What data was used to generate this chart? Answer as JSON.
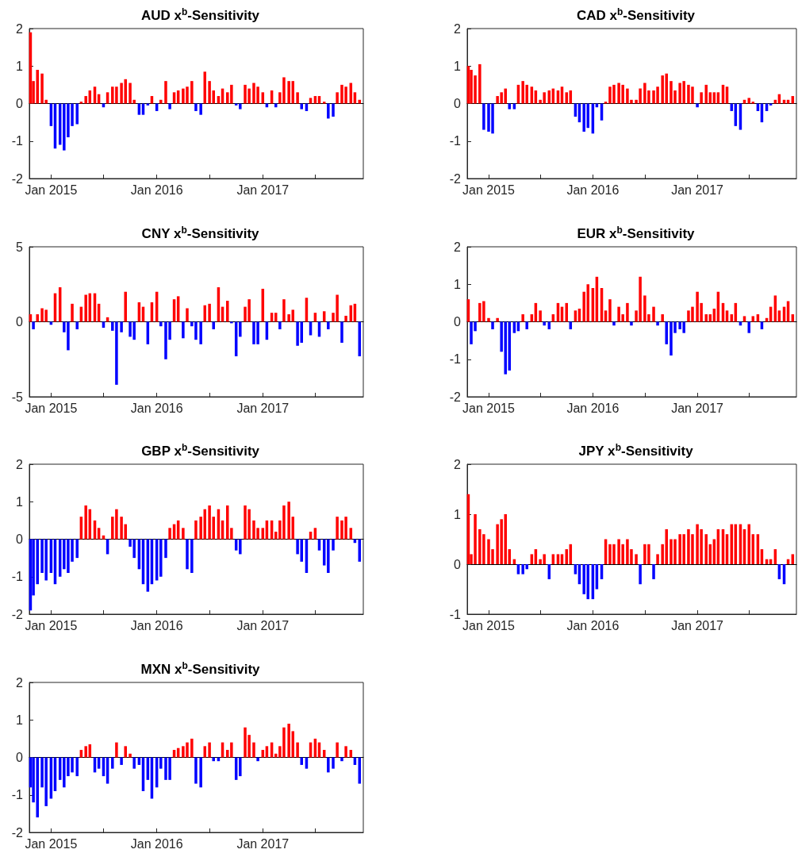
{
  "chart_data": [
    {
      "type": "bar",
      "title": "AUD x$^{b}$-Sensitivity",
      "x": [
        "2014-10-22",
        "2014-11-01",
        "2014-11-15",
        "2014-12-01",
        "2014-12-15",
        "2015-01-01",
        "2015-01-15",
        "2015-02-01",
        "2015-02-15",
        "2015-03-01",
        "2015-03-15",
        "2015-04-01",
        "2015-04-15",
        "2015-05-01",
        "2015-05-15",
        "2015-06-01",
        "2015-06-15",
        "2015-07-01",
        "2015-07-15",
        "2015-08-01",
        "2015-08-15",
        "2015-09-01",
        "2015-09-15",
        "2015-10-01",
        "2015-10-15",
        "2015-11-01",
        "2015-11-15",
        "2015-12-01",
        "2015-12-15",
        "2016-01-01",
        "2016-01-15",
        "2016-02-01",
        "2016-02-15",
        "2016-03-01",
        "2016-03-15",
        "2016-04-01",
        "2016-04-15",
        "2016-05-01",
        "2016-05-15",
        "2016-06-01",
        "2016-06-15",
        "2016-07-01",
        "2016-07-15",
        "2016-08-01",
        "2016-08-15",
        "2016-09-01",
        "2016-09-15",
        "2016-10-01",
        "2016-10-15",
        "2016-11-01",
        "2016-11-15",
        "2016-12-01",
        "2016-12-15",
        "2017-01-01",
        "2017-01-15",
        "2017-02-01",
        "2017-02-15",
        "2017-03-01",
        "2017-03-15",
        "2017-04-01",
        "2017-04-15",
        "2017-05-01",
        "2017-05-15",
        "2017-06-01",
        "2017-06-15",
        "2017-07-01",
        "2017-07-15",
        "2017-08-01",
        "2017-08-15",
        "2017-09-01",
        "2017-09-15",
        "2017-10-01",
        "2017-10-15",
        "2017-11-01",
        "2017-11-15",
        "2017-12-01"
      ],
      "values": [
        1.9,
        0.6,
        0.9,
        0.8,
        0.1,
        -0.6,
        -1.2,
        -1.1,
        -1.25,
        -0.9,
        -0.6,
        -0.55,
        0.05,
        0.2,
        0.35,
        0.45,
        0.25,
        -0.1,
        0.3,
        0.45,
        0.45,
        0.55,
        0.65,
        0.55,
        0.1,
        -0.3,
        -0.3,
        -0.05,
        0.2,
        -0.2,
        0.1,
        0.6,
        -0.15,
        0.3,
        0.35,
        0.4,
        0.45,
        0.6,
        -0.2,
        -0.3,
        0.85,
        0.6,
        0.35,
        0.2,
        0.4,
        0.3,
        0.5,
        -0.05,
        -0.15,
        0.5,
        0.4,
        0.55,
        0.45,
        0.3,
        -0.1,
        0.35,
        -0.1,
        0.3,
        0.7,
        0.6,
        0.6,
        0.3,
        -0.15,
        -0.2,
        0.15,
        0.2,
        0.2,
        0.05,
        -0.4,
        -0.35,
        0.3,
        0.5,
        0.45,
        0.55,
        0.3,
        0.1
      ],
      "colors": [
        "#ff0000",
        "#ff0000",
        "#ff0000",
        "#ff0000",
        "#ff0000",
        "#0000ff",
        "#0000ff",
        "#0000ff",
        "#0000ff",
        "#0000ff",
        "#0000ff",
        "#0000ff",
        "#ff0000",
        "#ff0000",
        "#ff0000",
        "#ff0000",
        "#ff0000",
        "#0000ff",
        "#ff0000",
        "#ff0000",
        "#ff0000",
        "#ff0000",
        "#ff0000",
        "#ff0000",
        "#ff0000",
        "#0000ff",
        "#0000ff",
        "#0000ff",
        "#ff0000",
        "#0000ff",
        "#ff0000",
        "#ff0000",
        "#0000ff",
        "#ff0000",
        "#ff0000",
        "#ff0000",
        "#ff0000",
        "#ff0000",
        "#0000ff",
        "#0000ff",
        "#ff0000",
        "#ff0000",
        "#ff0000",
        "#ff0000",
        "#ff0000",
        "#ff0000",
        "#ff0000",
        "#0000ff",
        "#0000ff",
        "#ff0000",
        "#ff0000",
        "#ff0000",
        "#ff0000",
        "#ff0000",
        "#0000ff",
        "#ff0000",
        "#0000ff",
        "#ff0000",
        "#ff0000",
        "#ff0000",
        "#ff0000",
        "#ff0000",
        "#0000ff",
        "#0000ff",
        "#ff0000",
        "#ff0000",
        "#ff0000",
        "#ff0000",
        "#0000ff",
        "#0000ff",
        "#ff0000",
        "#ff0000",
        "#ff0000",
        "#ff0000",
        "#ff0000",
        "#ff0000"
      ],
      "xlim": [
        "2014-10-18",
        "2017-12-14"
      ],
      "xticks": [
        {
          "value": "2015-01-01",
          "label": "Jan 2015"
        },
        {
          "value": "2015-07-01",
          "label": null
        },
        {
          "value": "2016-01-01",
          "label": "Jan 2016"
        },
        {
          "value": "2016-07-01",
          "label": null
        },
        {
          "value": "2017-01-01",
          "label": "Jan 2017"
        },
        {
          "value": "2017-07-01",
          "label": null
        }
      ],
      "ylim": [
        -2,
        2
      ],
      "yticks": [
        -2,
        -1,
        0,
        1,
        2
      ]
    },
    {
      "type": "bar",
      "title": "CAD x$^{b}$-Sensitivity",
      "x": [
        "2014-10-22",
        "2014-11-01",
        "2014-11-15",
        "2014-12-01",
        "2014-12-15",
        "2015-01-01",
        "2015-01-15",
        "2015-02-01",
        "2015-02-15",
        "2015-03-01",
        "2015-03-15",
        "2015-04-01",
        "2015-04-15",
        "2015-05-01",
        "2015-05-15",
        "2015-06-01",
        "2015-06-15",
        "2015-07-01",
        "2015-07-15",
        "2015-08-01",
        "2015-08-15",
        "2015-09-01",
        "2015-09-15",
        "2015-10-01",
        "2015-10-15",
        "2015-11-01",
        "2015-11-15",
        "2015-12-01",
        "2015-12-15",
        "2016-01-01",
        "2016-01-15",
        "2016-02-01",
        "2016-02-15",
        "2016-03-01",
        "2016-03-15",
        "2016-04-01",
        "2016-04-15",
        "2016-05-01",
        "2016-05-15",
        "2016-06-01",
        "2016-06-15",
        "2016-07-01",
        "2016-07-15",
        "2016-08-01",
        "2016-08-15",
        "2016-09-01",
        "2016-09-15",
        "2016-10-01",
        "2016-10-15",
        "2016-11-01",
        "2016-11-15",
        "2016-12-01",
        "2016-12-15",
        "2017-01-01",
        "2017-01-15",
        "2017-02-01",
        "2017-02-15",
        "2017-03-01",
        "2017-03-15",
        "2017-04-01",
        "2017-04-15",
        "2017-05-01",
        "2017-05-15",
        "2017-06-01",
        "2017-06-15",
        "2017-07-01",
        "2017-07-15",
        "2017-08-01",
        "2017-08-15",
        "2017-09-01",
        "2017-09-15",
        "2017-10-01",
        "2017-10-15",
        "2017-11-01",
        "2017-11-15",
        "2017-12-01"
      ],
      "values": [
        1.0,
        0.9,
        0.75,
        1.05,
        -0.7,
        -0.75,
        -0.8,
        0.2,
        0.3,
        0.4,
        -0.15,
        -0.15,
        0.5,
        0.6,
        0.5,
        0.45,
        0.35,
        0.1,
        0.3,
        0.35,
        0.4,
        0.35,
        0.45,
        0.3,
        0.35,
        -0.35,
        -0.5,
        -0.75,
        -0.65,
        -0.8,
        -0.1,
        -0.45,
        0.05,
        0.45,
        0.5,
        0.55,
        0.5,
        0.4,
        0.1,
        0.1,
        0.4,
        0.55,
        0.35,
        0.35,
        0.45,
        0.75,
        0.8,
        0.6,
        0.35,
        0.55,
        0.6,
        0.5,
        0.45,
        -0.1,
        0.3,
        0.5,
        0.3,
        0.3,
        0.3,
        0.5,
        0.45,
        -0.2,
        -0.6,
        -0.7,
        0.1,
        0.15,
        0.05,
        -0.2,
        -0.5,
        -0.2,
        -0.05,
        0.1,
        0.25,
        0.1,
        0.1,
        0.2
      ],
      "colors": [
        "#ff0000",
        "#ff0000",
        "#ff0000",
        "#ff0000",
        "#0000ff",
        "#0000ff",
        "#0000ff",
        "#ff0000",
        "#ff0000",
        "#ff0000",
        "#0000ff",
        "#0000ff",
        "#ff0000",
        "#ff0000",
        "#ff0000",
        "#ff0000",
        "#ff0000",
        "#ff0000",
        "#ff0000",
        "#ff0000",
        "#ff0000",
        "#ff0000",
        "#ff0000",
        "#ff0000",
        "#ff0000",
        "#0000ff",
        "#0000ff",
        "#0000ff",
        "#0000ff",
        "#0000ff",
        "#0000ff",
        "#0000ff",
        "#ff0000",
        "#ff0000",
        "#ff0000",
        "#ff0000",
        "#ff0000",
        "#ff0000",
        "#ff0000",
        "#ff0000",
        "#ff0000",
        "#ff0000",
        "#ff0000",
        "#ff0000",
        "#ff0000",
        "#ff0000",
        "#ff0000",
        "#ff0000",
        "#ff0000",
        "#ff0000",
        "#ff0000",
        "#ff0000",
        "#ff0000",
        "#0000ff",
        "#ff0000",
        "#ff0000",
        "#ff0000",
        "#ff0000",
        "#ff0000",
        "#ff0000",
        "#ff0000",
        "#0000ff",
        "#0000ff",
        "#0000ff",
        "#ff0000",
        "#ff0000",
        "#ff0000",
        "#0000ff",
        "#0000ff",
        "#0000ff",
        "#0000ff",
        "#ff0000",
        "#ff0000",
        "#ff0000",
        "#ff0000",
        "#ff0000"
      ],
      "xlim": [
        "2014-10-18",
        "2017-12-14"
      ],
      "xticks": [
        {
          "value": "2015-01-01",
          "label": "Jan 2015"
        },
        {
          "value": "2015-07-01",
          "label": null
        },
        {
          "value": "2016-01-01",
          "label": "Jan 2016"
        },
        {
          "value": "2016-07-01",
          "label": null
        },
        {
          "value": "2017-01-01",
          "label": "Jan 2017"
        },
        {
          "value": "2017-07-01",
          "label": null
        }
      ],
      "ylim": [
        -2,
        2
      ],
      "yticks": [
        -2,
        -1,
        0,
        1,
        2
      ]
    },
    {
      "type": "bar",
      "title": "CNY x$^{b}$-Sensitivity",
      "x": [
        "2014-10-22",
        "2014-11-01",
        "2014-11-15",
        "2014-12-01",
        "2014-12-15",
        "2015-01-01",
        "2015-01-15",
        "2015-02-01",
        "2015-02-15",
        "2015-03-01",
        "2015-03-15",
        "2015-04-01",
        "2015-04-15",
        "2015-05-01",
        "2015-05-15",
        "2015-06-01",
        "2015-06-15",
        "2015-07-01",
        "2015-07-15",
        "2015-08-01",
        "2015-08-15",
        "2015-09-01",
        "2015-09-15",
        "2015-10-01",
        "2015-10-15",
        "2015-11-01",
        "2015-11-15",
        "2015-12-01",
        "2015-12-15",
        "2016-01-01",
        "2016-01-15",
        "2016-02-01",
        "2016-02-15",
        "2016-03-01",
        "2016-03-15",
        "2016-04-01",
        "2016-04-15",
        "2016-05-01",
        "2016-05-15",
        "2016-06-01",
        "2016-06-15",
        "2016-07-01",
        "2016-07-15",
        "2016-08-01",
        "2016-08-15",
        "2016-09-01",
        "2016-09-15",
        "2016-10-01",
        "2016-10-15",
        "2016-11-01",
        "2016-11-15",
        "2016-12-01",
        "2016-12-15",
        "2017-01-01",
        "2017-01-15",
        "2017-02-01",
        "2017-02-15",
        "2017-03-01",
        "2017-03-15",
        "2017-04-01",
        "2017-04-15",
        "2017-05-01",
        "2017-05-15",
        "2017-06-01",
        "2017-06-15",
        "2017-07-01",
        "2017-07-15",
        "2017-08-01",
        "2017-08-15",
        "2017-09-01",
        "2017-09-15",
        "2017-10-01",
        "2017-10-15",
        "2017-11-01",
        "2017-11-15",
        "2017-12-01"
      ],
      "values": [
        0.5,
        -0.5,
        0.5,
        0.9,
        0.8,
        -0.2,
        1.9,
        2.3,
        -0.7,
        -1.9,
        1.2,
        -0.5,
        1.0,
        1.8,
        1.9,
        1.9,
        1.2,
        -0.4,
        0.3,
        -0.6,
        -4.2,
        -0.7,
        2.0,
        -1.0,
        -1.2,
        1.3,
        1.0,
        -1.5,
        1.3,
        2.0,
        -0.3,
        -2.5,
        -1.2,
        1.5,
        1.7,
        -1.1,
        0.9,
        -0.3,
        -1.2,
        -1.5,
        1.1,
        1.2,
        -0.5,
        2.3,
        1.0,
        1.4,
        -0.1,
        -2.3,
        -1.0,
        1.0,
        1.5,
        -1.5,
        -1.5,
        2.2,
        -1.2,
        0.6,
        0.6,
        -0.5,
        1.5,
        0.5,
        0.8,
        -1.6,
        -1.4,
        1.6,
        -0.9,
        0.6,
        -1.0,
        0.7,
        -0.5,
        0.6,
        1.8,
        -1.4,
        0.4,
        1.1,
        1.2,
        -2.3
      ],
      "colors": [
        "#ff0000",
        "#0000ff",
        "#ff0000",
        "#ff0000",
        "#ff0000",
        "#0000ff",
        "#ff0000",
        "#ff0000",
        "#0000ff",
        "#0000ff",
        "#ff0000",
        "#0000ff",
        "#ff0000",
        "#ff0000",
        "#ff0000",
        "#ff0000",
        "#ff0000",
        "#0000ff",
        "#ff0000",
        "#0000ff",
        "#0000ff",
        "#0000ff",
        "#ff0000",
        "#0000ff",
        "#0000ff",
        "#ff0000",
        "#ff0000",
        "#0000ff",
        "#ff0000",
        "#ff0000",
        "#0000ff",
        "#0000ff",
        "#0000ff",
        "#ff0000",
        "#ff0000",
        "#0000ff",
        "#ff0000",
        "#0000ff",
        "#0000ff",
        "#0000ff",
        "#ff0000",
        "#ff0000",
        "#0000ff",
        "#ff0000",
        "#ff0000",
        "#ff0000",
        "#0000ff",
        "#0000ff",
        "#0000ff",
        "#ff0000",
        "#ff0000",
        "#0000ff",
        "#0000ff",
        "#ff0000",
        "#0000ff",
        "#ff0000",
        "#ff0000",
        "#0000ff",
        "#ff0000",
        "#ff0000",
        "#ff0000",
        "#0000ff",
        "#0000ff",
        "#ff0000",
        "#0000ff",
        "#ff0000",
        "#0000ff",
        "#ff0000",
        "#0000ff",
        "#ff0000",
        "#ff0000",
        "#0000ff",
        "#ff0000",
        "#ff0000",
        "#ff0000",
        "#0000ff"
      ],
      "xlim": [
        "2014-10-18",
        "2017-12-14"
      ],
      "xticks": [
        {
          "value": "2015-01-01",
          "label": "Jan 2015"
        },
        {
          "value": "2015-07-01",
          "label": null
        },
        {
          "value": "2016-01-01",
          "label": "Jan 2016"
        },
        {
          "value": "2016-07-01",
          "label": null
        },
        {
          "value": "2017-01-01",
          "label": "Jan 2017"
        },
        {
          "value": "2017-07-01",
          "label": null
        }
      ],
      "ylim": [
        -5,
        5
      ],
      "yticks": [
        -5,
        0,
        5
      ]
    },
    {
      "type": "bar",
      "title": "EUR x$^{b}$-Sensitivity",
      "x": [
        "2014-10-22",
        "2014-11-01",
        "2014-11-15",
        "2014-12-01",
        "2014-12-15",
        "2015-01-01",
        "2015-01-15",
        "2015-02-01",
        "2015-02-15",
        "2015-03-01",
        "2015-03-15",
        "2015-04-01",
        "2015-04-15",
        "2015-05-01",
        "2015-05-15",
        "2015-06-01",
        "2015-06-15",
        "2015-07-01",
        "2015-07-15",
        "2015-08-01",
        "2015-08-15",
        "2015-09-01",
        "2015-09-15",
        "2015-10-01",
        "2015-10-15",
        "2015-11-01",
        "2015-11-15",
        "2015-12-01",
        "2015-12-15",
        "2016-01-01",
        "2016-01-15",
        "2016-02-01",
        "2016-02-15",
        "2016-03-01",
        "2016-03-15",
        "2016-04-01",
        "2016-04-15",
        "2016-05-01",
        "2016-05-15",
        "2016-06-01",
        "2016-06-15",
        "2016-07-01",
        "2016-07-15",
        "2016-08-01",
        "2016-08-15",
        "2016-09-01",
        "2016-09-15",
        "2016-10-01",
        "2016-10-15",
        "2016-11-01",
        "2016-11-15",
        "2016-12-01",
        "2016-12-15",
        "2017-01-01",
        "2017-01-15",
        "2017-02-01",
        "2017-02-15",
        "2017-03-01",
        "2017-03-15",
        "2017-04-01",
        "2017-04-15",
        "2017-05-01",
        "2017-05-15",
        "2017-06-01",
        "2017-06-15",
        "2017-07-01",
        "2017-07-15",
        "2017-08-01",
        "2017-08-15",
        "2017-09-01",
        "2017-09-15",
        "2017-10-01",
        "2017-10-15",
        "2017-11-01",
        "2017-11-15",
        "2017-12-01"
      ],
      "values": [
        0.6,
        -0.6,
        -0.25,
        0.5,
        0.55,
        0.1,
        -0.2,
        0.1,
        -0.8,
        -1.4,
        -1.3,
        -0.3,
        -0.25,
        0.2,
        -0.2,
        0.2,
        0.5,
        0.3,
        -0.1,
        -0.2,
        0.2,
        0.5,
        0.4,
        0.5,
        -0.2,
        0.3,
        0.35,
        0.8,
        1.0,
        0.9,
        1.2,
        0.9,
        0.3,
        0.6,
        -0.1,
        0.4,
        0.2,
        0.5,
        -0.1,
        0.3,
        1.2,
        0.7,
        0.2,
        0.4,
        -0.1,
        0.2,
        -0.6,
        -0.9,
        -0.3,
        -0.2,
        -0.3,
        0.3,
        0.4,
        0.8,
        0.5,
        0.2,
        0.2,
        0.35,
        0.8,
        0.5,
        0.3,
        0.2,
        0.5,
        -0.1,
        0.15,
        -0.3,
        0.15,
        0.2,
        -0.2,
        0.1,
        0.4,
        0.7,
        0.3,
        0.4,
        0.55,
        0.2
      ],
      "colors": [
        "#ff0000",
        "#0000ff",
        "#0000ff",
        "#ff0000",
        "#ff0000",
        "#ff0000",
        "#0000ff",
        "#ff0000",
        "#0000ff",
        "#0000ff",
        "#0000ff",
        "#0000ff",
        "#0000ff",
        "#ff0000",
        "#0000ff",
        "#ff0000",
        "#ff0000",
        "#ff0000",
        "#0000ff",
        "#0000ff",
        "#ff0000",
        "#ff0000",
        "#ff0000",
        "#ff0000",
        "#0000ff",
        "#ff0000",
        "#ff0000",
        "#ff0000",
        "#ff0000",
        "#ff0000",
        "#ff0000",
        "#ff0000",
        "#ff0000",
        "#ff0000",
        "#0000ff",
        "#ff0000",
        "#ff0000",
        "#ff0000",
        "#0000ff",
        "#ff0000",
        "#ff0000",
        "#ff0000",
        "#ff0000",
        "#ff0000",
        "#0000ff",
        "#ff0000",
        "#0000ff",
        "#0000ff",
        "#0000ff",
        "#0000ff",
        "#0000ff",
        "#ff0000",
        "#ff0000",
        "#ff0000",
        "#ff0000",
        "#ff0000",
        "#ff0000",
        "#ff0000",
        "#ff0000",
        "#ff0000",
        "#ff0000",
        "#ff0000",
        "#ff0000",
        "#0000ff",
        "#ff0000",
        "#0000ff",
        "#ff0000",
        "#ff0000",
        "#0000ff",
        "#ff0000",
        "#ff0000",
        "#ff0000",
        "#ff0000",
        "#ff0000",
        "#ff0000",
        "#ff0000"
      ],
      "xlim": [
        "2014-10-18",
        "2017-12-14"
      ],
      "xticks": [
        {
          "value": "2015-01-01",
          "label": "Jan 2015"
        },
        {
          "value": "2015-07-01",
          "label": null
        },
        {
          "value": "2016-01-01",
          "label": "Jan 2016"
        },
        {
          "value": "2016-07-01",
          "label": null
        },
        {
          "value": "2017-01-01",
          "label": "Jan 2017"
        },
        {
          "value": "2017-07-01",
          "label": null
        }
      ],
      "ylim": [
        -2,
        2
      ],
      "yticks": [
        -2,
        -1,
        0,
        1,
        2
      ]
    },
    {
      "type": "bar",
      "title": "GBP x$^{b}$-Sensitivity",
      "x": [
        "2014-10-22",
        "2014-11-01",
        "2014-11-15",
        "2014-12-01",
        "2014-12-15",
        "2015-01-01",
        "2015-01-15",
        "2015-02-01",
        "2015-02-15",
        "2015-03-01",
        "2015-03-15",
        "2015-04-01",
        "2015-04-15",
        "2015-05-01",
        "2015-05-15",
        "2015-06-01",
        "2015-06-15",
        "2015-07-01",
        "2015-07-15",
        "2015-08-01",
        "2015-08-15",
        "2015-09-01",
        "2015-09-15",
        "2015-10-01",
        "2015-10-15",
        "2015-11-01",
        "2015-11-15",
        "2015-12-01",
        "2015-12-15",
        "2016-01-01",
        "2016-01-15",
        "2016-02-01",
        "2016-02-15",
        "2016-03-01",
        "2016-03-15",
        "2016-04-01",
        "2016-04-15",
        "2016-05-01",
        "2016-05-15",
        "2016-06-01",
        "2016-06-15",
        "2016-07-01",
        "2016-07-15",
        "2016-08-01",
        "2016-08-15",
        "2016-09-01",
        "2016-09-15",
        "2016-10-01",
        "2016-10-15",
        "2016-11-01",
        "2016-11-15",
        "2016-12-01",
        "2016-12-15",
        "2017-01-01",
        "2017-01-15",
        "2017-02-01",
        "2017-02-15",
        "2017-03-01",
        "2017-03-15",
        "2017-04-01",
        "2017-04-15",
        "2017-05-01",
        "2017-05-15",
        "2017-06-01",
        "2017-06-15",
        "2017-07-01",
        "2017-07-15",
        "2017-08-01",
        "2017-08-15",
        "2017-09-01",
        "2017-09-15",
        "2017-10-01",
        "2017-10-15",
        "2017-11-01",
        "2017-11-15",
        "2017-12-01"
      ],
      "values": [
        -1.9,
        -1.5,
        -1.2,
        -0.9,
        -1.1,
        -0.9,
        -1.2,
        -1.0,
        -0.8,
        -0.9,
        -0.6,
        -0.5,
        0.6,
        0.9,
        0.8,
        0.5,
        0.3,
        0.1,
        -0.4,
        0.6,
        0.8,
        0.6,
        0.4,
        -0.2,
        -0.5,
        -0.8,
        -1.2,
        -1.4,
        -1.2,
        -1.1,
        -1.0,
        -0.5,
        0.3,
        0.4,
        0.5,
        0.3,
        -0.8,
        -0.9,
        0.5,
        0.6,
        0.8,
        0.9,
        0.6,
        0.8,
        0.5,
        0.9,
        0.3,
        -0.3,
        -0.4,
        0.9,
        0.8,
        0.5,
        0.3,
        0.3,
        0.5,
        0.5,
        0.2,
        0.5,
        0.9,
        1.0,
        0.6,
        -0.4,
        -0.6,
        -0.9,
        0.2,
        0.3,
        -0.3,
        -0.7,
        -0.9,
        -0.3,
        0.6,
        0.5,
        0.6,
        0.3,
        -0.1,
        -0.6
      ],
      "colors": [
        "#0000ff",
        "#0000ff",
        "#0000ff",
        "#0000ff",
        "#0000ff",
        "#0000ff",
        "#0000ff",
        "#0000ff",
        "#0000ff",
        "#0000ff",
        "#0000ff",
        "#0000ff",
        "#ff0000",
        "#ff0000",
        "#ff0000",
        "#ff0000",
        "#ff0000",
        "#ff0000",
        "#0000ff",
        "#ff0000",
        "#ff0000",
        "#ff0000",
        "#ff0000",
        "#0000ff",
        "#0000ff",
        "#0000ff",
        "#0000ff",
        "#0000ff",
        "#0000ff",
        "#0000ff",
        "#0000ff",
        "#0000ff",
        "#ff0000",
        "#ff0000",
        "#ff0000",
        "#ff0000",
        "#0000ff",
        "#0000ff",
        "#ff0000",
        "#ff0000",
        "#ff0000",
        "#ff0000",
        "#ff0000",
        "#ff0000",
        "#ff0000",
        "#ff0000",
        "#ff0000",
        "#0000ff",
        "#0000ff",
        "#ff0000",
        "#ff0000",
        "#ff0000",
        "#ff0000",
        "#ff0000",
        "#ff0000",
        "#ff0000",
        "#ff0000",
        "#ff0000",
        "#ff0000",
        "#ff0000",
        "#ff0000",
        "#0000ff",
        "#0000ff",
        "#0000ff",
        "#ff0000",
        "#ff0000",
        "#0000ff",
        "#0000ff",
        "#0000ff",
        "#0000ff",
        "#ff0000",
        "#ff0000",
        "#ff0000",
        "#ff0000",
        "#0000ff",
        "#0000ff"
      ],
      "xlim": [
        "2014-10-18",
        "2017-12-14"
      ],
      "xticks": [
        {
          "value": "2015-01-01",
          "label": "Jan 2015"
        },
        {
          "value": "2015-07-01",
          "label": null
        },
        {
          "value": "2016-01-01",
          "label": "Jan 2016"
        },
        {
          "value": "2016-07-01",
          "label": null
        },
        {
          "value": "2017-01-01",
          "label": "Jan 2017"
        },
        {
          "value": "2017-07-01",
          "label": null
        }
      ],
      "ylim": [
        -2,
        2
      ],
      "yticks": [
        -2,
        -1,
        0,
        1,
        2
      ]
    },
    {
      "type": "bar",
      "title": "JPY x$^{b}$-Sensitivity",
      "x": [
        "2014-10-22",
        "2014-11-01",
        "2014-11-15",
        "2014-12-01",
        "2014-12-15",
        "2015-01-01",
        "2015-01-15",
        "2015-02-01",
        "2015-02-15",
        "2015-03-01",
        "2015-03-15",
        "2015-04-01",
        "2015-04-15",
        "2015-05-01",
        "2015-05-15",
        "2015-06-01",
        "2015-06-15",
        "2015-07-01",
        "2015-07-15",
        "2015-08-01",
        "2015-08-15",
        "2015-09-01",
        "2015-09-15",
        "2015-10-01",
        "2015-10-15",
        "2015-11-01",
        "2015-11-15",
        "2015-12-01",
        "2015-12-15",
        "2016-01-01",
        "2016-01-15",
        "2016-02-01",
        "2016-02-15",
        "2016-03-01",
        "2016-03-15",
        "2016-04-01",
        "2016-04-15",
        "2016-05-01",
        "2016-05-15",
        "2016-06-01",
        "2016-06-15",
        "2016-07-01",
        "2016-07-15",
        "2016-08-01",
        "2016-08-15",
        "2016-09-01",
        "2016-09-15",
        "2016-10-01",
        "2016-10-15",
        "2016-11-01",
        "2016-11-15",
        "2016-12-01",
        "2016-12-15",
        "2017-01-01",
        "2017-01-15",
        "2017-02-01",
        "2017-02-15",
        "2017-03-01",
        "2017-03-15",
        "2017-04-01",
        "2017-04-15",
        "2017-05-01",
        "2017-05-15",
        "2017-06-01",
        "2017-06-15",
        "2017-07-01",
        "2017-07-15",
        "2017-08-01",
        "2017-08-15",
        "2017-09-01",
        "2017-09-15",
        "2017-10-01",
        "2017-10-15",
        "2017-11-01",
        "2017-11-15",
        "2017-12-01"
      ],
      "values": [
        1.4,
        0.2,
        1.0,
        0.7,
        0.6,
        0.5,
        0.3,
        0.8,
        0.9,
        1.0,
        0.3,
        0.1,
        -0.2,
        -0.2,
        -0.1,
        0.2,
        0.3,
        0.1,
        0.2,
        -0.3,
        0.2,
        0.2,
        0.2,
        0.3,
        0.4,
        -0.2,
        -0.4,
        -0.6,
        -0.7,
        -0.7,
        -0.5,
        -0.3,
        0.5,
        0.4,
        0.4,
        0.5,
        0.4,
        0.5,
        0.3,
        0.2,
        -0.4,
        0.4,
        0.4,
        -0.3,
        0.2,
        0.4,
        0.7,
        0.5,
        0.5,
        0.6,
        0.6,
        0.7,
        0.6,
        0.8,
        0.7,
        0.6,
        0.4,
        0.5,
        0.7,
        0.7,
        0.6,
        0.8,
        0.8,
        0.8,
        0.7,
        0.8,
        0.6,
        0.6,
        0.3,
        0.1,
        0.1,
        0.3,
        -0.3,
        -0.4,
        0.1,
        0.2
      ],
      "colors": [
        "#ff0000",
        "#ff0000",
        "#ff0000",
        "#ff0000",
        "#ff0000",
        "#ff0000",
        "#ff0000",
        "#ff0000",
        "#ff0000",
        "#ff0000",
        "#ff0000",
        "#ff0000",
        "#0000ff",
        "#0000ff",
        "#0000ff",
        "#ff0000",
        "#ff0000",
        "#ff0000",
        "#ff0000",
        "#0000ff",
        "#ff0000",
        "#ff0000",
        "#ff0000",
        "#ff0000",
        "#ff0000",
        "#0000ff",
        "#0000ff",
        "#0000ff",
        "#0000ff",
        "#0000ff",
        "#0000ff",
        "#0000ff",
        "#ff0000",
        "#ff0000",
        "#ff0000",
        "#ff0000",
        "#ff0000",
        "#ff0000",
        "#ff0000",
        "#ff0000",
        "#0000ff",
        "#ff0000",
        "#ff0000",
        "#0000ff",
        "#ff0000",
        "#ff0000",
        "#ff0000",
        "#ff0000",
        "#ff0000",
        "#ff0000",
        "#ff0000",
        "#ff0000",
        "#ff0000",
        "#ff0000",
        "#ff0000",
        "#ff0000",
        "#ff0000",
        "#ff0000",
        "#ff0000",
        "#ff0000",
        "#ff0000",
        "#ff0000",
        "#ff0000",
        "#ff0000",
        "#ff0000",
        "#ff0000",
        "#ff0000",
        "#ff0000",
        "#ff0000",
        "#ff0000",
        "#ff0000",
        "#ff0000",
        "#0000ff",
        "#0000ff",
        "#ff0000",
        "#ff0000"
      ],
      "xlim": [
        "2014-10-18",
        "2017-12-14"
      ],
      "xticks": [
        {
          "value": "2015-01-01",
          "label": "Jan 2015"
        },
        {
          "value": "2015-07-01",
          "label": null
        },
        {
          "value": "2016-01-01",
          "label": "Jan 2016"
        },
        {
          "value": "2016-07-01",
          "label": null
        },
        {
          "value": "2017-01-01",
          "label": "Jan 2017"
        },
        {
          "value": "2017-07-01",
          "label": null
        }
      ],
      "ylim": [
        -1,
        2
      ],
      "yticks": [
        -1,
        0,
        1,
        2
      ]
    },
    {
      "type": "bar",
      "title": "MXN x$^{b}$-Sensitivity",
      "x": [
        "2014-10-22",
        "2014-11-01",
        "2014-11-15",
        "2014-12-01",
        "2014-12-15",
        "2015-01-01",
        "2015-01-15",
        "2015-02-01",
        "2015-02-15",
        "2015-03-01",
        "2015-03-15",
        "2015-04-01",
        "2015-04-15",
        "2015-05-01",
        "2015-05-15",
        "2015-06-01",
        "2015-06-15",
        "2015-07-01",
        "2015-07-15",
        "2015-08-01",
        "2015-08-15",
        "2015-09-01",
        "2015-09-15",
        "2015-10-01",
        "2015-10-15",
        "2015-11-01",
        "2015-11-15",
        "2015-12-01",
        "2015-12-15",
        "2016-01-01",
        "2016-01-15",
        "2016-02-01",
        "2016-02-15",
        "2016-03-01",
        "2016-03-15",
        "2016-04-01",
        "2016-04-15",
        "2016-05-01",
        "2016-05-15",
        "2016-06-01",
        "2016-06-15",
        "2016-07-01",
        "2016-07-15",
        "2016-08-01",
        "2016-08-15",
        "2016-09-01",
        "2016-09-15",
        "2016-10-01",
        "2016-10-15",
        "2016-11-01",
        "2016-11-15",
        "2016-12-01",
        "2016-12-15",
        "2017-01-01",
        "2017-01-15",
        "2017-02-01",
        "2017-02-15",
        "2017-03-01",
        "2017-03-15",
        "2017-04-01",
        "2017-04-15",
        "2017-05-01",
        "2017-05-15",
        "2017-06-01",
        "2017-06-15",
        "2017-07-01",
        "2017-07-15",
        "2017-08-01",
        "2017-08-15",
        "2017-09-01",
        "2017-09-15",
        "2017-10-01",
        "2017-10-15",
        "2017-11-01",
        "2017-11-15",
        "2017-12-01"
      ],
      "values": [
        -0.8,
        -1.2,
        -1.6,
        -0.8,
        -1.3,
        -1.1,
        -0.9,
        -0.6,
        -0.8,
        -0.5,
        -0.4,
        -0.5,
        0.2,
        0.3,
        0.35,
        -0.4,
        -0.3,
        -0.5,
        -0.7,
        -0.3,
        0.4,
        -0.2,
        0.3,
        0.1,
        -0.3,
        -0.2,
        -0.9,
        -0.6,
        -1.1,
        -0.8,
        -0.3,
        -0.6,
        -0.6,
        0.2,
        0.25,
        0.3,
        0.4,
        0.5,
        -0.7,
        -0.8,
        0.3,
        0.4,
        -0.1,
        -0.1,
        0.4,
        0.2,
        0.4,
        -0.6,
        -0.5,
        0.8,
        0.6,
        0.4,
        -0.1,
        0.2,
        0.3,
        0.4,
        0.1,
        0.3,
        0.8,
        0.9,
        0.7,
        0.4,
        -0.2,
        -0.3,
        0.4,
        0.5,
        0.4,
        0.2,
        -0.4,
        -0.3,
        0.4,
        -0.1,
        0.3,
        0.2,
        -0.2,
        -0.7
      ],
      "colors": [
        "#0000ff",
        "#0000ff",
        "#0000ff",
        "#0000ff",
        "#0000ff",
        "#0000ff",
        "#0000ff",
        "#0000ff",
        "#0000ff",
        "#0000ff",
        "#0000ff",
        "#0000ff",
        "#ff0000",
        "#ff0000",
        "#ff0000",
        "#0000ff",
        "#0000ff",
        "#0000ff",
        "#0000ff",
        "#0000ff",
        "#ff0000",
        "#0000ff",
        "#ff0000",
        "#ff0000",
        "#0000ff",
        "#0000ff",
        "#0000ff",
        "#0000ff",
        "#0000ff",
        "#0000ff",
        "#0000ff",
        "#0000ff",
        "#0000ff",
        "#ff0000",
        "#ff0000",
        "#ff0000",
        "#ff0000",
        "#ff0000",
        "#0000ff",
        "#0000ff",
        "#ff0000",
        "#ff0000",
        "#0000ff",
        "#0000ff",
        "#ff0000",
        "#ff0000",
        "#ff0000",
        "#0000ff",
        "#0000ff",
        "#ff0000",
        "#ff0000",
        "#ff0000",
        "#0000ff",
        "#ff0000",
        "#ff0000",
        "#ff0000",
        "#ff0000",
        "#ff0000",
        "#ff0000",
        "#ff0000",
        "#ff0000",
        "#ff0000",
        "#0000ff",
        "#0000ff",
        "#ff0000",
        "#ff0000",
        "#ff0000",
        "#ff0000",
        "#0000ff",
        "#0000ff",
        "#ff0000",
        "#0000ff",
        "#ff0000",
        "#ff0000",
        "#0000ff",
        "#0000ff"
      ],
      "xlim": [
        "2014-10-18",
        "2017-12-14"
      ],
      "xticks": [
        {
          "value": "2015-01-01",
          "label": "Jan 2015"
        },
        {
          "value": "2015-07-01",
          "label": null
        },
        {
          "value": "2016-01-01",
          "label": "Jan 2016"
        },
        {
          "value": "2016-07-01",
          "label": null
        },
        {
          "value": "2017-01-01",
          "label": "Jan 2017"
        },
        {
          "value": "2017-07-01",
          "label": null
        }
      ],
      "ylim": [
        -2,
        2
      ],
      "yticks": [
        -2,
        -1,
        0,
        1,
        2
      ]
    }
  ]
}
